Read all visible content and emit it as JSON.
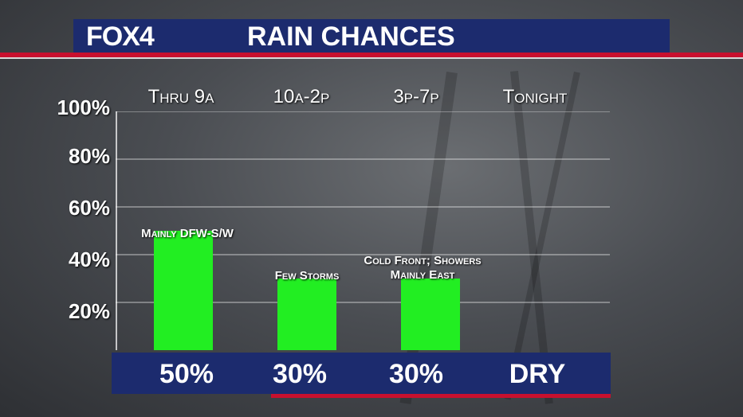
{
  "header": {
    "logo": "FOX4",
    "title": "RAIN CHANCES"
  },
  "chart_data": {
    "type": "bar",
    "categories": [
      "Thru 9a",
      "10a-2p",
      "3p-7p",
      "Tonight"
    ],
    "values": [
      50,
      30,
      30,
      0
    ],
    "value_labels": [
      "50%",
      "30%",
      "30%",
      "DRY"
    ],
    "annotations": [
      "Mainly DFW-S/W",
      "Few Storms",
      "Cold Front; Showers Mainly East",
      ""
    ],
    "yticks": [
      "100%",
      "80%",
      "60%",
      "40%",
      "20%"
    ],
    "ylim": [
      0,
      100
    ],
    "grid": true,
    "bar_color": "#22ee22"
  }
}
